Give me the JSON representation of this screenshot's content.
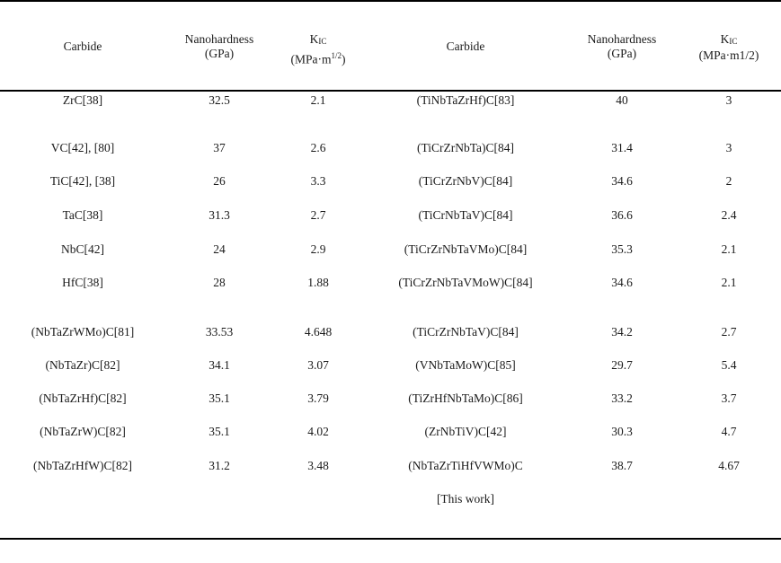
{
  "header": {
    "left": {
      "carbide": "Carbide",
      "nano_line1": "Nanohardness",
      "nano_line2": "(GPa)",
      "kic_k": "K",
      "kic_sub": "IC",
      "kic_unit_pre": "(MPa·m",
      "kic_unit_sup": "1/2",
      "kic_unit_post": ")"
    },
    "right": {
      "carbide": "Carbide",
      "nano_line1": "Nanohardness",
      "nano_line2": "(GPa)",
      "kic_k": "K",
      "kic_sub": "IC",
      "kic_unit": "(MPa·m1/2)"
    }
  },
  "rows": [
    {
      "l_carbide": "ZrC[38]",
      "l_nano": "32.5",
      "l_kic": "2.1",
      "r_carbide": "(TiNbTaZrHf)C[83]",
      "r_nano": "40",
      "r_kic": "3"
    },
    {
      "l_carbide": "VC[42], [80]",
      "l_nano": "37",
      "l_kic": "2.6",
      "r_carbide": "(TiCrZrNbTa)C[84]",
      "r_nano": "31.4",
      "r_kic": "3"
    },
    {
      "l_carbide": "TiC[42], [38]",
      "l_nano": "26",
      "l_kic": "3.3",
      "r_carbide": "(TiCrZrNbV)C[84]",
      "r_nano": "34.6",
      "r_kic": "2"
    },
    {
      "l_carbide": "TaC[38]",
      "l_nano": "31.3",
      "l_kic": "2.7",
      "r_carbide": "(TiCrNbTaV)C[84]",
      "r_nano": "36.6",
      "r_kic": "2.4"
    },
    {
      "l_carbide": "NbC[42]",
      "l_nano": "24",
      "l_kic": "2.9",
      "r_carbide": "(TiCrZrNbTaVMo)C[84]",
      "r_nano": "35.3",
      "r_kic": "2.1"
    },
    {
      "l_carbide": "HfC[38]",
      "l_nano": "28",
      "l_kic": "1.88",
      "r_carbide": "(TiCrZrNbTaVMoW)C[84]",
      "r_nano": "34.6",
      "r_kic": "2.1"
    },
    {
      "l_carbide": "(NbTaZrWMo)C[81]",
      "l_nano": "33.53",
      "l_kic": "4.648",
      "r_carbide": "(TiCrZrNbTaV)C[84]",
      "r_nano": "34.2",
      "r_kic": "2.7"
    },
    {
      "l_carbide": "(NbTaZr)C[82]",
      "l_nano": "34.1",
      "l_kic": "3.07",
      "r_carbide": "(VNbTaMoW)C[85]",
      "r_nano": "29.7",
      "r_kic": "5.4"
    },
    {
      "l_carbide": "(NbTaZrHf)C[82]",
      "l_nano": "35.1",
      "l_kic": "3.79",
      "r_carbide": "(TiZrHfNbTaMo)C[86]",
      "r_nano": "33.2",
      "r_kic": "3.7"
    },
    {
      "l_carbide": "(NbTaZrW)C[82]",
      "l_nano": "35.1",
      "l_kic": "4.02",
      "r_carbide": "(ZrNbTiV)C[42]",
      "r_nano": "30.3",
      "r_kic": "4.7"
    },
    {
      "l_carbide": "(NbTaZrHfW)C[82]",
      "l_nano": "31.2",
      "l_kic": "3.48",
      "r_carbide": "(NbTaZrTiHfVWMo)C",
      "r_nano": "38.7",
      "r_kic": "4.67"
    }
  ],
  "last_row_continuation": "[This work]"
}
